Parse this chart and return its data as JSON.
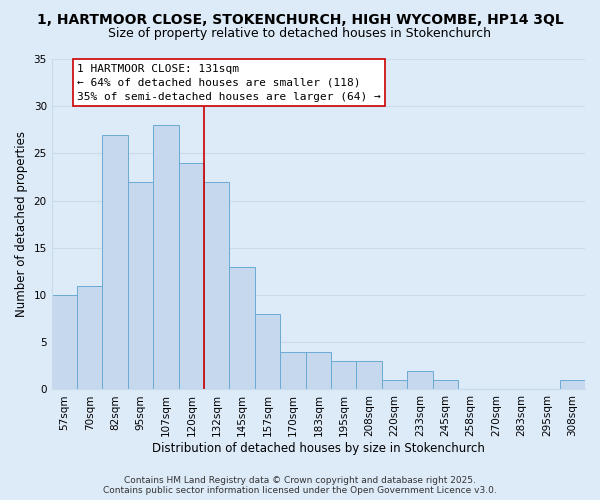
{
  "title": "1, HARTMOOR CLOSE, STOKENCHURCH, HIGH WYCOMBE, HP14 3QL",
  "subtitle": "Size of property relative to detached houses in Stokenchurch",
  "xlabel": "Distribution of detached houses by size in Stokenchurch",
  "ylabel": "Number of detached properties",
  "bar_labels": [
    "57sqm",
    "70sqm",
    "82sqm",
    "95sqm",
    "107sqm",
    "120sqm",
    "132sqm",
    "145sqm",
    "157sqm",
    "170sqm",
    "183sqm",
    "195sqm",
    "208sqm",
    "220sqm",
    "233sqm",
    "245sqm",
    "258sqm",
    "270sqm",
    "283sqm",
    "295sqm",
    "308sqm"
  ],
  "bar_values": [
    10,
    11,
    27,
    22,
    28,
    24,
    22,
    13,
    8,
    4,
    4,
    3,
    3,
    1,
    2,
    1,
    0,
    0,
    0,
    0,
    1
  ],
  "bar_color": "#c5d8ee",
  "bar_edge_color": "#6aaad4",
  "grid_color": "#c8dcee",
  "background_color": "#ddeaf8",
  "ylim": [
    0,
    35
  ],
  "yticks": [
    0,
    5,
    10,
    15,
    20,
    25,
    30,
    35
  ],
  "vline_color": "#cc0000",
  "annotation_title": "1 HARTMOOR CLOSE: 131sqm",
  "annotation_line1": "← 64% of detached houses are smaller (118)",
  "annotation_line2": "35% of semi-detached houses are larger (64) →",
  "annotation_box_color": "#ffffff",
  "annotation_box_edge_color": "#cc0000",
  "footer1": "Contains HM Land Registry data © Crown copyright and database right 2025.",
  "footer2": "Contains public sector information licensed under the Open Government Licence v3.0.",
  "title_fontsize": 10,
  "subtitle_fontsize": 9,
  "xlabel_fontsize": 8.5,
  "ylabel_fontsize": 8.5,
  "tick_fontsize": 7.5,
  "annotation_fontsize": 8,
  "footer_fontsize": 6.5
}
